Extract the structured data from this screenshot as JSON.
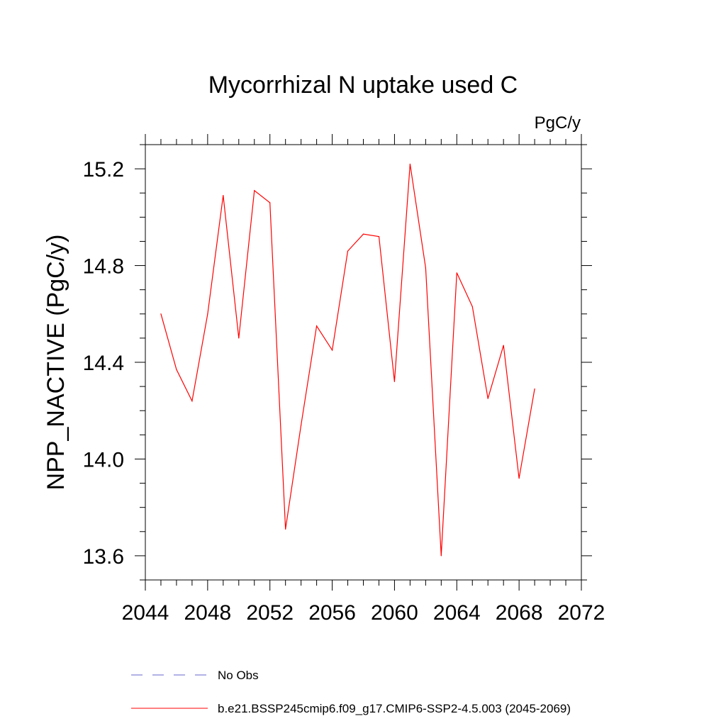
{
  "chart_data": {
    "type": "line",
    "title": "Mycorrhizal N uptake used C",
    "units": "PgC/y",
    "ylabel": "NPP_NACTIVE  (PgC/y)",
    "xlabel": "",
    "xlim": [
      2044,
      2072
    ],
    "ylim": [
      13.5,
      15.3
    ],
    "x_ticks": [
      2044,
      2048,
      2052,
      2056,
      2060,
      2064,
      2068,
      2072
    ],
    "x_tick_labels": [
      "2044",
      "2048",
      "2052",
      "2056",
      "2060",
      "2064",
      "2068",
      "2072"
    ],
    "y_ticks": [
      13.6,
      14.0,
      14.4,
      14.8,
      15.2
    ],
    "y_tick_labels": [
      "13.6",
      "14.0",
      "14.4",
      "14.8",
      "15.2"
    ],
    "grid": false,
    "legend_position": "bottom",
    "series": [
      {
        "name": "b.e21.BSSP245cmip6.f09_g17.CMIP6-SSP2-4.5.003 (2045-2069)",
        "color": "#ff0000",
        "style": "solid",
        "x": [
          2045,
          2046,
          2047,
          2048,
          2049,
          2050,
          2051,
          2052,
          2053,
          2054,
          2055,
          2056,
          2057,
          2058,
          2059,
          2060,
          2061,
          2062,
          2063,
          2064,
          2065,
          2066,
          2067,
          2068,
          2069
        ],
        "y": [
          14.6,
          14.37,
          14.24,
          14.6,
          15.09,
          14.5,
          15.11,
          15.06,
          13.71,
          14.14,
          14.55,
          14.45,
          14.86,
          14.93,
          14.92,
          14.32,
          15.22,
          14.79,
          13.6,
          14.77,
          14.63,
          14.25,
          14.47,
          13.92,
          14.29
        ]
      }
    ],
    "legend": [
      {
        "label": "No Obs",
        "color": "#6666cc",
        "style": "dashed"
      },
      {
        "label": "b.e21.BSSP245cmip6.f09_g17.CMIP6-SSP2-4.5.003 (2045-2069)",
        "color": "#ff0000",
        "style": "solid"
      }
    ]
  }
}
